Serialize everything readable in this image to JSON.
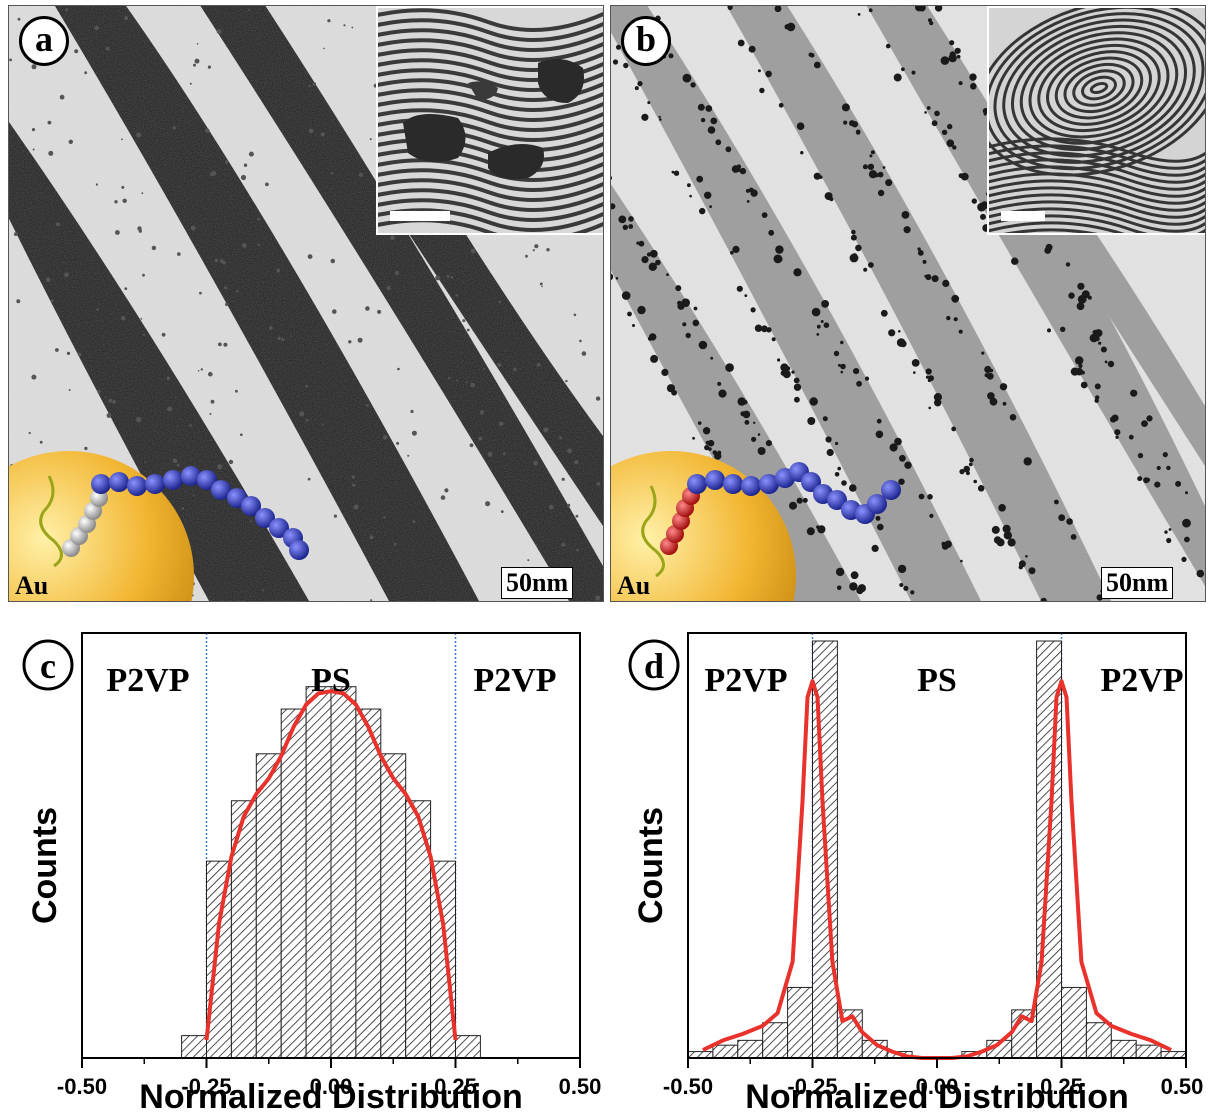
{
  "panels": {
    "a": {
      "letter": "a",
      "scale_bar": "50nm",
      "particle_label": "Au"
    },
    "b": {
      "letter": "b",
      "scale_bar": "50nm",
      "particle_label": "Au"
    },
    "c": {
      "letter": "c"
    },
    "d": {
      "letter": "d"
    }
  },
  "colors": {
    "fit_line": "#e8322b",
    "divider": "#3a78c8",
    "chain_blue": "#2a35b8",
    "chain_gray": "#bfbfbf",
    "chain_red": "#d81f1f",
    "gold": "#f2b531"
  },
  "chart_data": [
    {
      "type": "bar",
      "panel": "c",
      "xlabel": "Normalized Distribution",
      "ylabel": "Counts",
      "xlim": [
        -0.5,
        0.5
      ],
      "xticks": [
        "-0.50",
        "-0.25",
        "0.00",
        "0.25",
        "0.50"
      ],
      "region_labels": [
        "P2VP",
        "PS",
        "P2VP"
      ],
      "dividers": [
        -0.25,
        0.25
      ],
      "bin_width": 0.05,
      "bin_centers": [
        -0.275,
        -0.225,
        -0.175,
        -0.125,
        -0.075,
        -0.025,
        0.025,
        0.075,
        0.125,
        0.175,
        0.225,
        0.275
      ],
      "values": [
        1,
        8.8,
        11.5,
        13.6,
        15.6,
        16.6,
        16.6,
        15.6,
        13.6,
        11.5,
        8.8,
        1
      ],
      "fit_curve": {
        "x": [
          -0.25,
          -0.225,
          -0.2,
          -0.175,
          -0.15,
          -0.125,
          -0.1,
          -0.075,
          -0.05,
          -0.025,
          0,
          0.025,
          0.05,
          0.075,
          0.1,
          0.125,
          0.15,
          0.175,
          0.2,
          0.225,
          0.25
        ],
        "y": [
          0.8,
          6,
          9,
          10.8,
          11.8,
          12.5,
          13.5,
          14.8,
          15.8,
          16.3,
          16.4,
          16.3,
          15.8,
          14.8,
          13.5,
          12.5,
          11.8,
          10.8,
          9,
          6,
          0.8
        ]
      },
      "ylim": [
        0,
        19
      ]
    },
    {
      "type": "bar",
      "panel": "d",
      "xlabel": "Normalized Distribution",
      "ylabel": "Counts",
      "xlim": [
        -0.5,
        0.5
      ],
      "xticks": [
        "-0.50",
        "-0.25",
        "0.00",
        "0.25",
        "0.50"
      ],
      "region_labels": [
        "P2VP",
        "PS",
        "P2VP"
      ],
      "dividers": [
        -0.25,
        0.25
      ],
      "bin_width": 0.05,
      "bin_centers": [
        -0.475,
        -0.425,
        -0.375,
        -0.325,
        -0.275,
        -0.225,
        -0.175,
        -0.125,
        -0.075,
        -0.025,
        0.025,
        0.075,
        0.125,
        0.175,
        0.225,
        0.275,
        0.325,
        0.375,
        0.425,
        0.475
      ],
      "values": [
        0.4,
        0.8,
        1.1,
        2.2,
        4.4,
        26,
        3.0,
        1.1,
        0.4,
        0,
        0,
        0.4,
        1.1,
        3.0,
        26,
        4.4,
        2.2,
        1.1,
        0.8,
        0.4
      ],
      "fit_curve": {
        "x": [
          -0.47,
          -0.43,
          -0.39,
          -0.35,
          -0.32,
          -0.29,
          -0.27,
          -0.26,
          -0.25,
          -0.24,
          -0.23,
          -0.21,
          -0.19,
          -0.17,
          -0.15,
          -0.12,
          -0.09,
          -0.06,
          -0.03,
          0,
          0.03,
          0.06,
          0.09,
          0.12,
          0.15,
          0.17,
          0.19,
          0.21,
          0.23,
          0.24,
          0.25,
          0.26,
          0.27,
          0.29,
          0.32,
          0.35,
          0.39,
          0.43,
          0.47
        ],
        "y": [
          0.5,
          1.1,
          1.5,
          2.0,
          2.8,
          6,
          16,
          22.5,
          23.5,
          22.5,
          16,
          6,
          2.3,
          2.6,
          1.6,
          0.8,
          0.4,
          0.1,
          0,
          0,
          0,
          0.1,
          0.4,
          0.8,
          1.6,
          2.6,
          2.3,
          6,
          16,
          22.5,
          23.5,
          22.5,
          16,
          6,
          2.8,
          2.0,
          1.5,
          1.1,
          0.5
        ]
      },
      "ylim": [
        0,
        26.5
      ]
    }
  ]
}
